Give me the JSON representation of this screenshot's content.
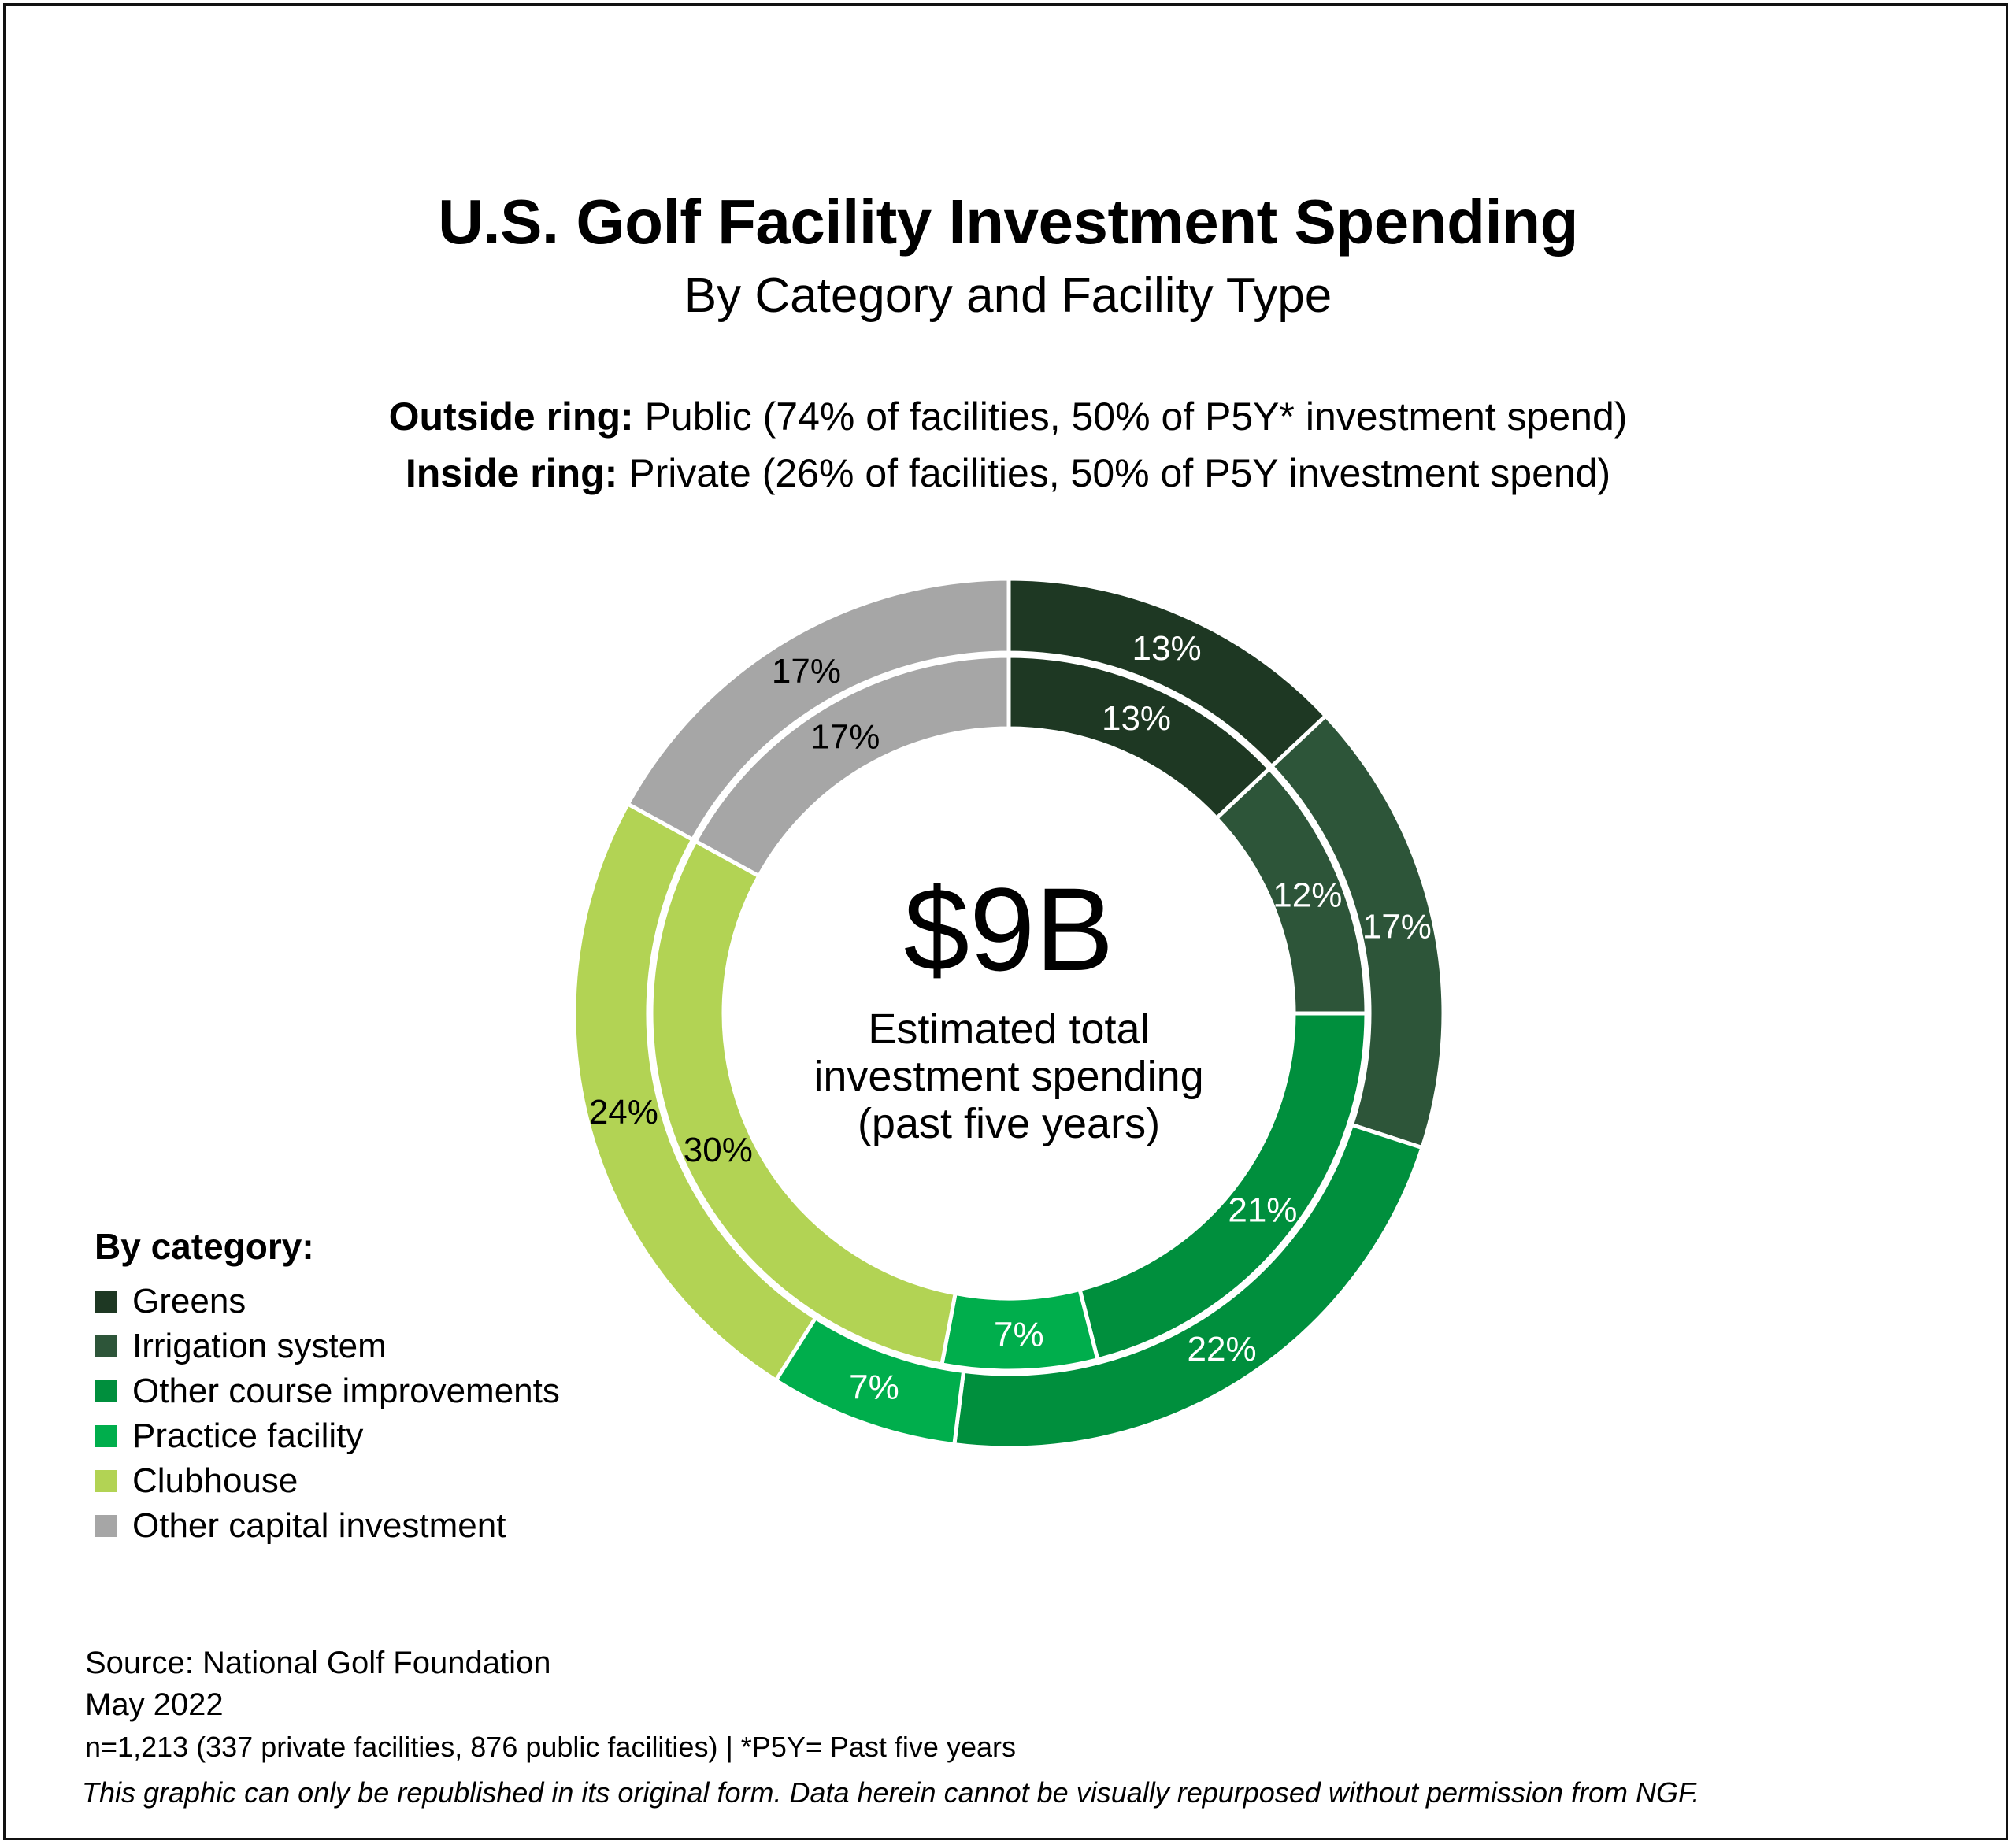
{
  "chart_data": {
    "type": "pie",
    "title": "U.S. Golf Facility Investment Spending",
    "subtitle": "By Category and Facility Type",
    "ring_notes": {
      "outside": {
        "label": "Outside ring:",
        "text": "Public (74% of facilities, 50% of P5Y* investment spend)"
      },
      "inside": {
        "label": "Inside ring:",
        "text": "Private (26% of facilities, 50% of P5Y investment spend)"
      }
    },
    "categories": [
      "Greens",
      "Irrigation system",
      "Other course improvements",
      "Practice facility",
      "Clubhouse",
      "Other capital investment"
    ],
    "colors": [
      "#1e3823",
      "#2d5539",
      "#008f3d",
      "#00ae4c",
      "#b2d354",
      "#a6a6a6"
    ],
    "series": [
      {
        "ring": "outside",
        "values": [
          13,
          17,
          22,
          7,
          24,
          17
        ],
        "labels": [
          "13%",
          "17%",
          "22%",
          "7%",
          "24%",
          "17%"
        ],
        "label_colors": [
          "#ffffff",
          "#ffffff",
          "#ffffff",
          "#ffffff",
          "#000000",
          "#000000"
        ]
      },
      {
        "ring": "inside",
        "values": [
          13,
          12,
          21,
          7,
          30,
          17
        ],
        "labels": [
          "13%",
          "12%",
          "21%",
          "7%",
          "30%",
          "17%"
        ],
        "label_colors": [
          "#ffffff",
          "#ffffff",
          "#ffffff",
          "#ffffff",
          "#000000",
          "#000000"
        ]
      }
    ],
    "center": {
      "value": "$9B",
      "lines": [
        "Estimated total",
        "investment spending",
        "(past five years)"
      ]
    },
    "legend": {
      "title": "By category:",
      "placement": "bottom-left"
    }
  },
  "footer": {
    "source": "Source: National Golf Foundation",
    "date": "May 2022",
    "note": "n=1,213 (337 private facilities, 876 public facilities) | *P5Y= Past five years",
    "disclaimer": "This graphic can only be republished in its original form. Data herein cannot be visually repurposed without permission from NGF."
  }
}
